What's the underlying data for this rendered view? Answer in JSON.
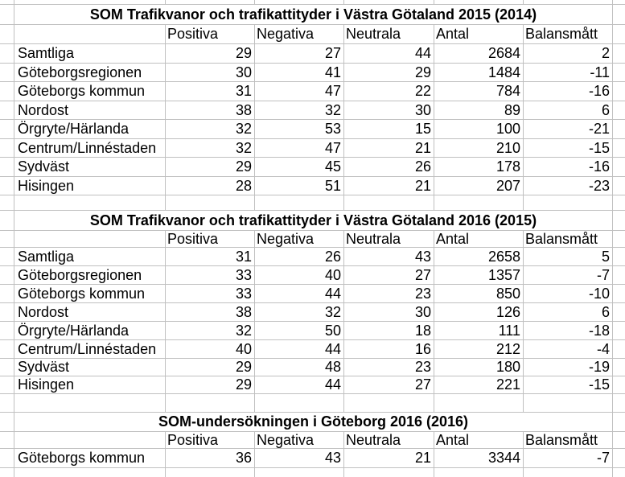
{
  "app": {
    "background_color": "#ffffff",
    "gridline_color": "#c0c0c0",
    "text_color": "#000000"
  },
  "tables": [
    {
      "title": "SOM Trafikvanor och trafikattityder i Västra Götaland 2015 (2014)",
      "headers": [
        "Positiva",
        "Negativa",
        "Neutrala",
        "Antal",
        "Balansmått"
      ],
      "rows": [
        {
          "label": "Samtliga",
          "values": [
            29,
            27,
            44,
            2684,
            2
          ]
        },
        {
          "label": "Göteborgsregionen",
          "values": [
            30,
            41,
            29,
            1484,
            -11
          ]
        },
        {
          "label": "Göteborgs kommun",
          "values": [
            31,
            47,
            22,
            784,
            -16
          ]
        },
        {
          "label": "Nordost",
          "values": [
            38,
            32,
            30,
            89,
            6
          ]
        },
        {
          "label": "Örgryte/Härlanda",
          "values": [
            32,
            53,
            15,
            100,
            -21
          ]
        },
        {
          "label": "Centrum/Linnéstaden",
          "values": [
            32,
            47,
            21,
            210,
            -15
          ]
        },
        {
          "label": "Sydväst",
          "values": [
            29,
            45,
            26,
            178,
            -16
          ]
        },
        {
          "label": "Hisingen",
          "values": [
            28,
            51,
            21,
            207,
            -23
          ]
        }
      ]
    },
    {
      "title": "SOM Trafikvanor och trafikattityder i Västra Götaland 2016 (2015)",
      "headers": [
        "Positiva",
        "Negativa",
        "Neutrala",
        "Antal",
        "Balansmått"
      ],
      "rows": [
        {
          "label": "Samtliga",
          "values": [
            31,
            26,
            43,
            2658,
            5
          ]
        },
        {
          "label": "Göteborgsregionen",
          "values": [
            33,
            40,
            27,
            1357,
            -7
          ]
        },
        {
          "label": "Göteborgs kommun",
          "values": [
            33,
            44,
            23,
            850,
            -10
          ]
        },
        {
          "label": "Nordost",
          "values": [
            38,
            32,
            30,
            126,
            6
          ]
        },
        {
          "label": "Örgryte/Härlanda",
          "values": [
            32,
            50,
            18,
            111,
            -18
          ]
        },
        {
          "label": "Centrum/Linnéstaden",
          "values": [
            40,
            44,
            16,
            212,
            -4
          ]
        },
        {
          "label": "Sydväst",
          "values": [
            29,
            48,
            23,
            180,
            -19
          ]
        },
        {
          "label": "Hisingen",
          "values": [
            29,
            44,
            27,
            221,
            -15
          ]
        }
      ]
    },
    {
      "title": "SOM-undersökningen i Göteborg 2016 (2016)",
      "headers": [
        "Positiva",
        "Negativa",
        "Neutrala",
        "Antal",
        "Balansmått"
      ],
      "rows": [
        {
          "label": "Göteborgs kommun",
          "values": [
            36,
            43,
            21,
            3344,
            -7
          ]
        }
      ]
    }
  ]
}
